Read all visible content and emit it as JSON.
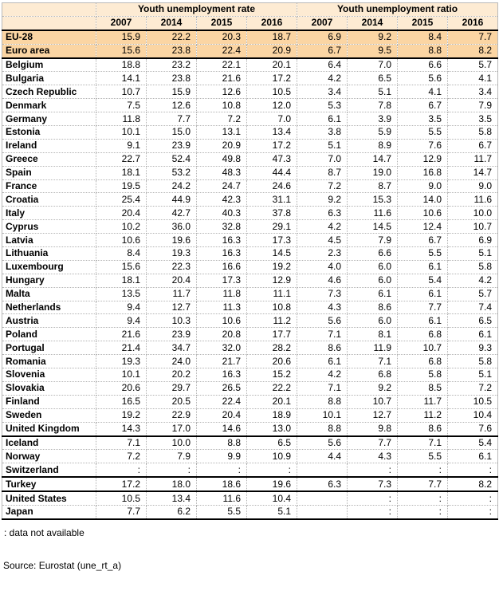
{
  "colors": {
    "header_bg": "#fdebd3",
    "aggregate_row_bg": "#fbd5a3",
    "rule_black": "#000000",
    "dotted_grid": "#b3b3b3"
  },
  "table": {
    "corner_label": "",
    "col_groups": [
      {
        "label": "Youth unemployment rate"
      },
      {
        "label": "Youth unemployment ratio"
      }
    ],
    "years": [
      "2007",
      "2014",
      "2015",
      "2016",
      "2007",
      "2014",
      "2015",
      "2016"
    ],
    "rows": [
      {
        "name": "EU-28",
        "values": [
          "15.9",
          "22.2",
          "20.3",
          "18.7",
          "6.9",
          "9.2",
          "8.4",
          "7.7"
        ],
        "highlight": true,
        "sep": "dotted"
      },
      {
        "name": "Euro area",
        "values": [
          "15.6",
          "23.8",
          "22.4",
          "20.9",
          "6.7",
          "9.5",
          "8.8",
          "8.2"
        ],
        "highlight": true,
        "sep": "solid"
      },
      {
        "name": "Belgium",
        "values": [
          "18.8",
          "23.2",
          "22.1",
          "20.1",
          "6.4",
          "7.0",
          "6.6",
          "5.7"
        ],
        "highlight": false,
        "sep": "dotted"
      },
      {
        "name": "Bulgaria",
        "values": [
          "14.1",
          "23.8",
          "21.6",
          "17.2",
          "4.2",
          "6.5",
          "5.6",
          "4.1"
        ],
        "highlight": false,
        "sep": "dotted"
      },
      {
        "name": "Czech Republic",
        "values": [
          "10.7",
          "15.9",
          "12.6",
          "10.5",
          "3.4",
          "5.1",
          "4.1",
          "3.4"
        ],
        "highlight": false,
        "sep": "dotted"
      },
      {
        "name": "Denmark",
        "values": [
          "7.5",
          "12.6",
          "10.8",
          "12.0",
          "5.3",
          "7.8",
          "6.7",
          "7.9"
        ],
        "highlight": false,
        "sep": "dotted"
      },
      {
        "name": "Germany",
        "values": [
          "11.8",
          "7.7",
          "7.2",
          "7.0",
          "6.1",
          "3.9",
          "3.5",
          "3.5"
        ],
        "highlight": false,
        "sep": "dotted"
      },
      {
        "name": "Estonia",
        "values": [
          "10.1",
          "15.0",
          "13.1",
          "13.4",
          "3.8",
          "5.9",
          "5.5",
          "5.8"
        ],
        "highlight": false,
        "sep": "dotted"
      },
      {
        "name": "Ireland",
        "values": [
          "9.1",
          "23.9",
          "20.9",
          "17.2",
          "5.1",
          "8.9",
          "7.6",
          "6.7"
        ],
        "highlight": false,
        "sep": "dotted"
      },
      {
        "name": "Greece",
        "values": [
          "22.7",
          "52.4",
          "49.8",
          "47.3",
          "7.0",
          "14.7",
          "12.9",
          "11.7"
        ],
        "highlight": false,
        "sep": "dotted"
      },
      {
        "name": "Spain",
        "values": [
          "18.1",
          "53.2",
          "48.3",
          "44.4",
          "8.7",
          "19.0",
          "16.8",
          "14.7"
        ],
        "highlight": false,
        "sep": "dotted"
      },
      {
        "name": "France",
        "values": [
          "19.5",
          "24.2",
          "24.7",
          "24.6",
          "7.2",
          "8.7",
          "9.0",
          "9.0"
        ],
        "highlight": false,
        "sep": "dotted"
      },
      {
        "name": "Croatia",
        "values": [
          "25.4",
          "44.9",
          "42.3",
          "31.1",
          "9.2",
          "15.3",
          "14.0",
          "11.6"
        ],
        "highlight": false,
        "sep": "dotted"
      },
      {
        "name": "Italy",
        "values": [
          "20.4",
          "42.7",
          "40.3",
          "37.8",
          "6.3",
          "11.6",
          "10.6",
          "10.0"
        ],
        "highlight": false,
        "sep": "dotted"
      },
      {
        "name": "Cyprus",
        "values": [
          "10.2",
          "36.0",
          "32.8",
          "29.1",
          "4.2",
          "14.5",
          "12.4",
          "10.7"
        ],
        "highlight": false,
        "sep": "dotted"
      },
      {
        "name": "Latvia",
        "values": [
          "10.6",
          "19.6",
          "16.3",
          "17.3",
          "4.5",
          "7.9",
          "6.7",
          "6.9"
        ],
        "highlight": false,
        "sep": "dotted"
      },
      {
        "name": "Lithuania",
        "values": [
          "8.4",
          "19.3",
          "16.3",
          "14.5",
          "2.3",
          "6.6",
          "5.5",
          "5.1"
        ],
        "highlight": false,
        "sep": "dotted"
      },
      {
        "name": "Luxembourg",
        "values": [
          "15.6",
          "22.3",
          "16.6",
          "19.2",
          "4.0",
          "6.0",
          "6.1",
          "5.8"
        ],
        "highlight": false,
        "sep": "dotted"
      },
      {
        "name": "Hungary",
        "values": [
          "18.1",
          "20.4",
          "17.3",
          "12.9",
          "4.6",
          "6.0",
          "5.4",
          "4.2"
        ],
        "highlight": false,
        "sep": "dotted"
      },
      {
        "name": "Malta",
        "values": [
          "13.5",
          "11.7",
          "11.8",
          "11.1",
          "7.3",
          "6.1",
          "6.1",
          "5.7"
        ],
        "highlight": false,
        "sep": "dotted"
      },
      {
        "name": "Netherlands",
        "values": [
          "9.4",
          "12.7",
          "11.3",
          "10.8",
          "4.3",
          "8.6",
          "7.7",
          "7.4"
        ],
        "highlight": false,
        "sep": "dotted"
      },
      {
        "name": "Austria",
        "values": [
          "9.4",
          "10.3",
          "10.6",
          "11.2",
          "5.6",
          "6.0",
          "6.1",
          "6.5"
        ],
        "highlight": false,
        "sep": "dotted"
      },
      {
        "name": "Poland",
        "values": [
          "21.6",
          "23.9",
          "20.8",
          "17.7",
          "7.1",
          "8.1",
          "6.8",
          "6.1"
        ],
        "highlight": false,
        "sep": "dotted"
      },
      {
        "name": "Portugal",
        "values": [
          "21.4",
          "34.7",
          "32.0",
          "28.2",
          "8.6",
          "11.9",
          "10.7",
          "9.3"
        ],
        "highlight": false,
        "sep": "dotted"
      },
      {
        "name": "Romania",
        "values": [
          "19.3",
          "24.0",
          "21.7",
          "20.6",
          "6.1",
          "7.1",
          "6.8",
          "5.8"
        ],
        "highlight": false,
        "sep": "dotted"
      },
      {
        "name": "Slovenia",
        "values": [
          "10.1",
          "20.2",
          "16.3",
          "15.2",
          "4.2",
          "6.8",
          "5.8",
          "5.1"
        ],
        "highlight": false,
        "sep": "dotted"
      },
      {
        "name": "Slovakia",
        "values": [
          "20.6",
          "29.7",
          "26.5",
          "22.2",
          "7.1",
          "9.2",
          "8.5",
          "7.2"
        ],
        "highlight": false,
        "sep": "dotted"
      },
      {
        "name": "Finland",
        "values": [
          "16.5",
          "20.5",
          "22.4",
          "20.1",
          "8.8",
          "10.7",
          "11.7",
          "10.5"
        ],
        "highlight": false,
        "sep": "dotted"
      },
      {
        "name": "Sweden",
        "values": [
          "19.2",
          "22.9",
          "20.4",
          "18.9",
          "10.1",
          "12.7",
          "11.2",
          "10.4"
        ],
        "highlight": false,
        "sep": "dotted"
      },
      {
        "name": "United Kingdom",
        "values": [
          "14.3",
          "17.0",
          "14.6",
          "13.0",
          "8.8",
          "9.8",
          "8.6",
          "7.6"
        ],
        "highlight": false,
        "sep": "solid"
      },
      {
        "name": "Iceland",
        "values": [
          "7.1",
          "10.0",
          "8.8",
          "6.5",
          "5.6",
          "7.7",
          "7.1",
          "5.4"
        ],
        "highlight": false,
        "sep": "dotted"
      },
      {
        "name": "Norway",
        "values": [
          "7.2",
          "7.9",
          "9.9",
          "10.9",
          "4.4",
          "4.3",
          "5.5",
          "6.1"
        ],
        "highlight": false,
        "sep": "dotted"
      },
      {
        "name": "Switzerland",
        "values": [
          ":",
          ":",
          ":",
          ":",
          "",
          ":",
          ":",
          ":"
        ],
        "highlight": false,
        "sep": "solid"
      },
      {
        "name": "Turkey",
        "values": [
          "17.2",
          "18.0",
          "18.6",
          "19.6",
          "6.3",
          "7.3",
          "7.7",
          "8.2"
        ],
        "highlight": false,
        "sep": "solid"
      },
      {
        "name": "United States",
        "values": [
          "10.5",
          "13.4",
          "11.6",
          "10.4",
          "",
          ":",
          ":",
          ":"
        ],
        "highlight": false,
        "sep": "dotted"
      },
      {
        "name": "Japan",
        "values": [
          "7.7",
          "6.2",
          "5.5",
          "5.1",
          "",
          ":",
          ":",
          ":"
        ],
        "highlight": false,
        "sep": "solid"
      }
    ]
  },
  "footnote": ": data not available",
  "source": "Source: Eurostat (une_rt_a)"
}
